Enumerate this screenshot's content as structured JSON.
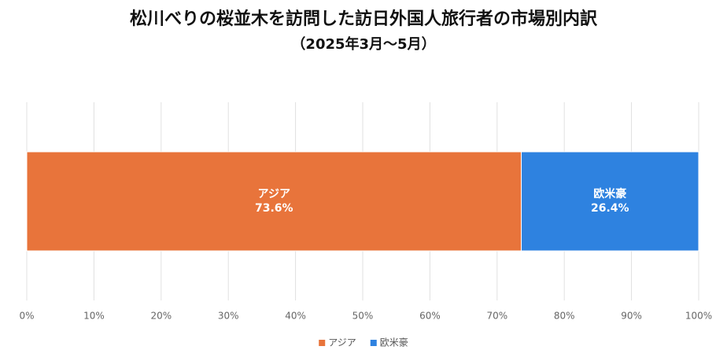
{
  "chart_data": {
    "type": "bar",
    "orientation": "horizontal",
    "stacked": true,
    "title": "松川べりの桜並木を訪問した訪日外国人旅行者の市場別内訳",
    "subtitle": "（2025年3月～5月）",
    "categories": [
      null
    ],
    "series": [
      {
        "name": "アジア",
        "color": "#e8743b",
        "values": [
          73.6
        ],
        "value_labels": [
          "73.6%"
        ]
      },
      {
        "name": "欧米豪",
        "color": "#2e82e0",
        "values": [
          26.4
        ],
        "value_labels": [
          "26.4%"
        ]
      }
    ],
    "xlim": [
      0,
      100
    ],
    "xticks": [
      {
        "value": 0,
        "label": "0%"
      },
      {
        "value": 10,
        "label": "10%"
      },
      {
        "value": 20,
        "label": "20%"
      },
      {
        "value": 30,
        "label": "30%"
      },
      {
        "value": 40,
        "label": "40%"
      },
      {
        "value": 50,
        "label": "50%"
      },
      {
        "value": 60,
        "label": "60%"
      },
      {
        "value": 70,
        "label": "70%"
      },
      {
        "value": 80,
        "label": "80%"
      },
      {
        "value": 90,
        "label": "90%"
      },
      {
        "value": 100,
        "label": "100%"
      }
    ],
    "grid": true,
    "legend": "bottom"
  }
}
